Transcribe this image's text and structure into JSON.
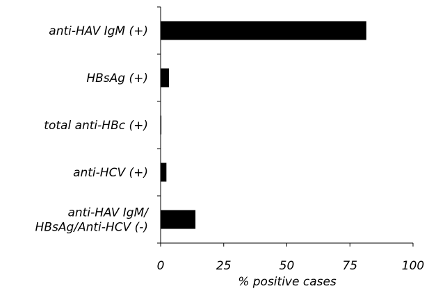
{
  "chart_data": {
    "type": "bar",
    "orientation": "horizontal",
    "categories": [
      [
        "anti-HAV IgM (+)"
      ],
      [
        "HBsAg (+)"
      ],
      [
        "total anti-HBc (+)"
      ],
      [
        "anti-HCV (+)"
      ],
      [
        "anti-HAV IgM/",
        "HBsAg/Anti-HCV (-)"
      ]
    ],
    "values": [
      81.5,
      3.3,
      0.3,
      2.3,
      13.8
    ],
    "xlim": [
      0,
      100
    ],
    "xticks": [
      "0",
      "25",
      "50",
      "75",
      "100"
    ],
    "xlabel": "% positive cases",
    "grid": false,
    "colors": {
      "bar": "#000000",
      "axis": "#000000"
    }
  }
}
